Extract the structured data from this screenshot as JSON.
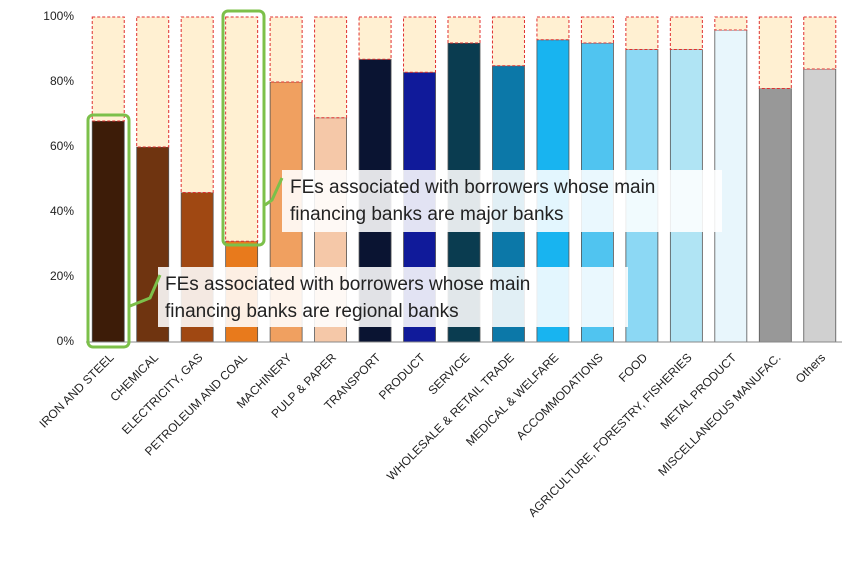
{
  "chart_data": {
    "type": "stacked-bar",
    "categories": [
      "IRON AND STEEL",
      "CHEMICAL",
      "ELECTRICITY, GAS",
      "PETROLEUM AND COAL",
      "MACHINERY",
      "PULP & PAPER",
      "TRANSPORT",
      "PRODUCT",
      "SERVICE",
      "WHOLESALE & RETAIL TRADE",
      "MEDICAL & WELFARE",
      "ACCOMMODATIONS",
      "FOOD",
      "AGRICULTURE, FORESTRY, FISHERIES",
      "METAL PRODUCT",
      "MISCELLANEOUS MANUFAC.",
      "Others"
    ],
    "series": [
      {
        "colors": [
          "#3d1c08",
          "#6f3410",
          "#a04812",
          "#e87a1c",
          "#f0a060",
          "#f5c8a8",
          "#0a1432",
          "#101a9a",
          "#0a3c50",
          "#0c78a8",
          "#18b4f0",
          "#50c4f0",
          "#8cd8f4",
          "#b0e4f4",
          "#e8f6fc",
          "#989898",
          "#d0d0d0"
        ],
        "values": [
          68,
          60,
          46,
          31,
          80,
          69,
          87,
          83,
          92,
          85,
          93,
          92,
          90,
          90,
          96,
          78,
          84
        ]
      },
      {
        "color": "#fff0d2",
        "edge_color": "#e03030",
        "values": [
          32,
          40,
          54,
          69,
          20,
          31,
          13,
          17,
          8,
          15,
          7,
          8,
          10,
          10,
          4,
          22,
          16
        ]
      }
    ],
    "ylim": [
      0,
      100
    ],
    "yticks": [
      {
        "value": 0,
        "label": "0%"
      },
      {
        "value": 20,
        "label": "20%"
      },
      {
        "value": 40,
        "label": "40%"
      },
      {
        "value": 60,
        "label": "60%"
      },
      {
        "value": 80,
        "label": "80%"
      },
      {
        "value": 100,
        "label": "100%"
      }
    ],
    "grid": false,
    "annotations": [
      {
        "lines": [
          "FEs associated with borrowers whose main",
          "financing banks are major banks"
        ]
      },
      {
        "lines": [
          "FEs associated with borrowers whose main",
          "financing banks are regional banks"
        ]
      }
    ]
  }
}
